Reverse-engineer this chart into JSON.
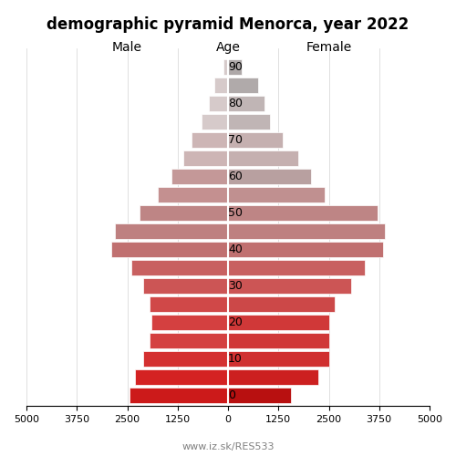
{
  "title": "demographic pyramid Menorca, year 2022",
  "age_groups": [
    0,
    5,
    10,
    15,
    20,
    25,
    30,
    35,
    40,
    45,
    50,
    55,
    60,
    65,
    70,
    75,
    80,
    85,
    90
  ],
  "male": [
    2450,
    2300,
    2100,
    1950,
    1900,
    1950,
    2100,
    2400,
    2900,
    2800,
    2200,
    1750,
    1400,
    1100,
    900,
    650,
    480,
    350,
    120
  ],
  "female": [
    1550,
    2250,
    2500,
    2500,
    2500,
    2650,
    3050,
    3400,
    3850,
    3900,
    3700,
    2400,
    2050,
    1750,
    1350,
    1050,
    900,
    750,
    350
  ],
  "male_colors": [
    "#cc1a1a",
    "#d42222",
    "#d43030",
    "#d44040",
    "#d44040",
    "#d04848",
    "#cc5555",
    "#c86060",
    "#c07070",
    "#be8080",
    "#be8585",
    "#c49090",
    "#c49898",
    "#cdb5b5",
    "#cdb5b5",
    "#d6caca",
    "#d6caca",
    "#d6caca",
    "#d6caca"
  ],
  "female_colors": [
    "#b81010",
    "#cc2020",
    "#d03030",
    "#d03838",
    "#d03838",
    "#cc4848",
    "#cc5555",
    "#c86060",
    "#c07070",
    "#be8080",
    "#be8585",
    "#c09090",
    "#b8a0a0",
    "#c5b0b0",
    "#c5b0b0",
    "#c0b5b5",
    "#c0b5b5",
    "#b0aaaa",
    "#aea8a8"
  ],
  "xlim": 5000,
  "xticks_vals": [
    -5000,
    -3750,
    -2500,
    -1250,
    0,
    1250,
    2500,
    3750,
    5000
  ],
  "xticks_labels": [
    "5000",
    "3750",
    "2500",
    "1250",
    "0",
    "1250",
    "2500",
    "3750",
    "5000"
  ],
  "ytick_ages": [
    0,
    10,
    20,
    30,
    40,
    50,
    60,
    70,
    80,
    90
  ],
  "xlabel_left": "Male",
  "xlabel_center": "Age",
  "xlabel_right": "Female",
  "footer": "www.iz.sk/RES533",
  "bar_height": 0.85
}
